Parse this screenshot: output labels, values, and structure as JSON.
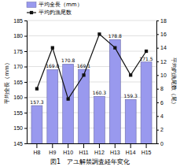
{
  "chart_data": {
    "type": "bar",
    "title": "図1　アユ解禁調査経年変化",
    "categories": [
      "H8",
      "H9",
      "H10",
      "H11",
      "H12",
      "H13",
      "H14",
      "H15"
    ],
    "series": [
      {
        "name": "平均全長（mm）",
        "type": "bar",
        "color": "#9999ee",
        "values": [
          157.3,
          169.0,
          170.8,
          169.1,
          160.3,
          178.8,
          159.3,
          171.5
        ],
        "value_labels": [
          "157.3",
          "169.0",
          "170.8",
          "169.1",
          "160.3",
          "178.8",
          "159.3",
          "171.5"
        ],
        "data_labels": true
      },
      {
        "name": "平均釣漁尾数",
        "type": "line",
        "axis": "y2",
        "color": "#111111",
        "marker": "square",
        "values": [
          8.0,
          14.0,
          6.5,
          10.0,
          16.0,
          14.0,
          10.0,
          13.5
        ]
      }
    ],
    "ylabel": "平均全長（mm）",
    "y2label": "平均釣漁尾数（尾）",
    "ylim": [
      145,
      185
    ],
    "yticks": [
      145,
      150,
      155,
      160,
      165,
      170,
      175,
      180,
      185
    ],
    "y2lim": [
      0,
      18
    ],
    "y2ticks": [
      0,
      2,
      4,
      6,
      8,
      10,
      12,
      14,
      16,
      18
    ],
    "grid": true,
    "legend": "upper-left"
  }
}
